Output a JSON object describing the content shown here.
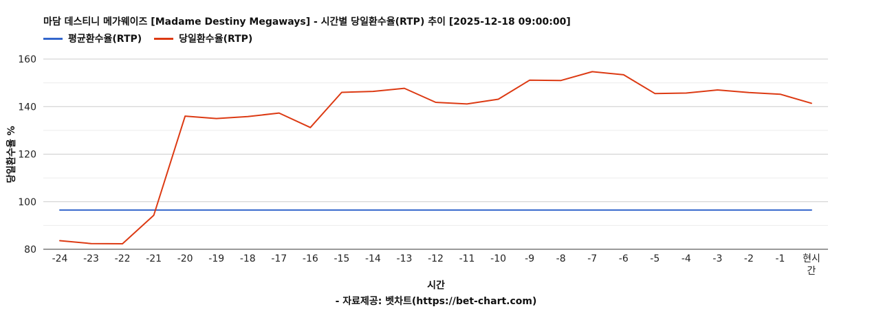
{
  "chart_data": {
    "type": "line",
    "title": "마담 데스티니 메가웨이즈 [Madame Destiny Megaways] - 시간별 당일환수율(RTP) 추이 [2025-12-18 09:00:00]",
    "xlabel": "시간",
    "ylabel": "당일환수율 %",
    "source": "- 자료제공: 벳차트(https://bet-chart.com)",
    "categories": [
      "-24",
      "-23",
      "-22",
      "-21",
      "-20",
      "-19",
      "-18",
      "-17",
      "-16",
      "-15",
      "-14",
      "-13",
      "-12",
      "-11",
      "-10",
      "-9",
      "-8",
      "-7",
      "-6",
      "-5",
      "-4",
      "-3",
      "-2",
      "-1",
      "현시간"
    ],
    "ylim": [
      80,
      160
    ],
    "yticks": [
      80,
      100,
      120,
      140,
      160
    ],
    "grid": true,
    "legend_position": "top-left",
    "series": [
      {
        "name": "평균환수율(RTP)",
        "color": "#3366cc",
        "values": [
          96.5,
          96.5,
          96.5,
          96.5,
          96.5,
          96.5,
          96.5,
          96.5,
          96.5,
          96.5,
          96.5,
          96.5,
          96.5,
          96.5,
          96.5,
          96.5,
          96.5,
          96.5,
          96.5,
          96.5,
          96.5,
          96.5,
          96.5,
          96.5,
          96.5
        ]
      },
      {
        "name": "당일환수율(RTP)",
        "color": "#dc3912",
        "values": [
          83.6,
          82.4,
          82.3,
          94.3,
          136.0,
          135.0,
          135.8,
          137.3,
          131.2,
          146.0,
          146.4,
          147.7,
          141.8,
          141.1,
          143.1,
          151.1,
          151.0,
          154.7,
          153.4,
          145.5,
          145.7,
          147.0,
          145.9,
          145.2,
          141.4
        ]
      }
    ]
  }
}
